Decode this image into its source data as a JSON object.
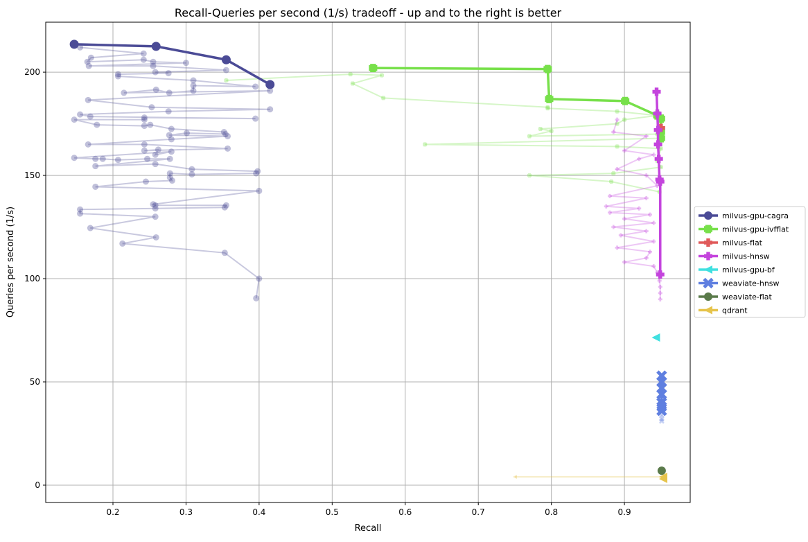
{
  "chart_data": {
    "type": "line",
    "title": "Recall-Queries per second (1/s) tradeoff - up and to the right is better",
    "xlabel": "Recall",
    "ylabel": "Queries per second (1/s)",
    "xlim": [
      0.108,
      0.99
    ],
    "ylim": [
      -8.4,
      224.2
    ],
    "xticks": [
      0.2,
      0.3,
      0.4,
      0.5,
      0.6,
      0.7,
      0.8,
      0.9
    ],
    "xtick_labels": [
      "0.2",
      "0.3",
      "0.4",
      "0.5",
      "0.6",
      "0.7",
      "0.8",
      "0.9"
    ],
    "yticks": [
      0,
      50,
      100,
      150,
      200
    ],
    "ytick_labels": [
      "0",
      "50",
      "100",
      "150",
      "200"
    ],
    "grid": true,
    "legend_position": "outside-right",
    "series": [
      {
        "name": "milvus-gpu-cagra",
        "color": "#4b4b96",
        "marker": "circle",
        "frontier": [
          [
            0.147,
            213.5
          ],
          [
            0.259,
            212.5
          ],
          [
            0.355,
            206
          ],
          [
            0.415,
            194
          ]
        ],
        "all": [
          [
            0.155,
            212
          ],
          [
            0.242,
            209
          ],
          [
            0.17,
            207
          ],
          [
            0.165,
            205
          ],
          [
            0.242,
            206
          ],
          [
            0.255,
            205
          ],
          [
            0.3,
            204.5
          ],
          [
            0.167,
            203
          ],
          [
            0.255,
            203
          ],
          [
            0.355,
            201
          ],
          [
            0.258,
            200
          ],
          [
            0.276,
            199.5
          ],
          [
            0.207,
            199
          ],
          [
            0.207,
            198
          ],
          [
            0.31,
            196
          ],
          [
            0.395,
            193
          ],
          [
            0.31,
            193.5
          ],
          [
            0.31,
            191
          ],
          [
            0.277,
            190
          ],
          [
            0.259,
            191.5
          ],
          [
            0.215,
            190
          ],
          [
            0.415,
            191
          ],
          [
            0.166,
            186.5
          ],
          [
            0.253,
            183
          ],
          [
            0.415,
            182
          ],
          [
            0.276,
            181
          ],
          [
            0.155,
            179.5
          ],
          [
            0.169,
            178.5
          ],
          [
            0.395,
            177.5
          ],
          [
            0.243,
            178
          ],
          [
            0.243,
            177
          ],
          [
            0.147,
            177
          ],
          [
            0.178,
            174.5
          ],
          [
            0.243,
            174
          ],
          [
            0.251,
            174.5
          ],
          [
            0.28,
            172.5
          ],
          [
            0.352,
            171
          ],
          [
            0.354,
            170
          ],
          [
            0.301,
            170.5
          ],
          [
            0.277,
            169.5
          ],
          [
            0.357,
            169
          ],
          [
            0.28,
            167.5
          ],
          [
            0.166,
            165
          ],
          [
            0.243,
            165
          ],
          [
            0.357,
            163
          ],
          [
            0.243,
            162
          ],
          [
            0.262,
            162.5
          ],
          [
            0.258,
            160
          ],
          [
            0.28,
            161.5
          ],
          [
            0.147,
            158.5
          ],
          [
            0.176,
            158
          ],
          [
            0.186,
            158
          ],
          [
            0.207,
            157.5
          ],
          [
            0.247,
            158
          ],
          [
            0.278,
            158
          ],
          [
            0.176,
            154.5
          ],
          [
            0.258,
            155.5
          ],
          [
            0.308,
            153
          ],
          [
            0.398,
            152
          ],
          [
            0.396,
            151
          ],
          [
            0.308,
            150.5
          ],
          [
            0.278,
            151
          ],
          [
            0.278,
            149
          ],
          [
            0.281,
            147.5
          ],
          [
            0.245,
            147
          ],
          [
            0.176,
            144.5
          ],
          [
            0.4,
            142.5
          ],
          [
            0.255,
            136
          ],
          [
            0.258,
            135.5
          ],
          [
            0.355,
            135.5
          ],
          [
            0.353,
            134.5
          ],
          [
            0.258,
            134
          ],
          [
            0.155,
            133.5
          ],
          [
            0.155,
            131.5
          ],
          [
            0.258,
            130
          ],
          [
            0.169,
            124.5
          ],
          [
            0.259,
            120
          ],
          [
            0.213,
            117
          ],
          [
            0.353,
            112.5
          ],
          [
            0.4,
            100
          ],
          [
            0.396,
            90.5
          ]
        ]
      },
      {
        "name": "milvus-gpu-ivfflat",
        "color": "#77e04a",
        "marker": "plusfilled",
        "frontier": [
          [
            0.556,
            202
          ],
          [
            0.795,
            201.5
          ],
          [
            0.797,
            187
          ],
          [
            0.901,
            186
          ],
          [
            0.945,
            179
          ],
          [
            0.95,
            177.5
          ],
          [
            0.95,
            171
          ],
          [
            0.95,
            168
          ]
        ],
        "all": [
          [
            0.355,
            196
          ],
          [
            0.525,
            199
          ],
          [
            0.568,
            198.5
          ],
          [
            0.528,
            194.5
          ],
          [
            0.57,
            187.5
          ],
          [
            0.795,
            183
          ],
          [
            0.795,
            182.5
          ],
          [
            0.89,
            181
          ],
          [
            0.945,
            179
          ],
          [
            0.9,
            177
          ],
          [
            0.89,
            175
          ],
          [
            0.785,
            172.5
          ],
          [
            0.8,
            171.5
          ],
          [
            0.77,
            169
          ],
          [
            0.945,
            170
          ],
          [
            0.95,
            168
          ],
          [
            0.627,
            165
          ],
          [
            0.89,
            164
          ],
          [
            0.95,
            163
          ],
          [
            0.945,
            157
          ],
          [
            0.95,
            154
          ],
          [
            0.885,
            151
          ],
          [
            0.77,
            150
          ],
          [
            0.882,
            147
          ],
          [
            0.948,
            142
          ]
        ]
      },
      {
        "name": "milvus-flat",
        "color": "#e05a5a",
        "marker": "plus",
        "frontier": [
          [
            0.95,
            173
          ]
        ],
        "all": []
      },
      {
        "name": "milvus-hnsw",
        "color": "#c444dd",
        "marker": "plus",
        "frontier": [
          [
            0.944,
            190.5
          ],
          [
            0.945,
            180
          ],
          [
            0.946,
            172
          ],
          [
            0.946,
            165
          ],
          [
            0.947,
            158
          ],
          [
            0.948,
            148
          ],
          [
            0.949,
            147
          ],
          [
            0.949,
            102
          ]
        ],
        "all": [
          [
            0.89,
            177
          ],
          [
            0.885,
            171
          ],
          [
            0.93,
            169
          ],
          [
            0.9,
            162
          ],
          [
            0.94,
            160
          ],
          [
            0.92,
            158
          ],
          [
            0.89,
            153
          ],
          [
            0.93,
            150
          ],
          [
            0.945,
            145
          ],
          [
            0.88,
            140
          ],
          [
            0.93,
            139
          ],
          [
            0.875,
            135
          ],
          [
            0.92,
            134
          ],
          [
            0.88,
            132
          ],
          [
            0.935,
            131
          ],
          [
            0.9,
            129
          ],
          [
            0.94,
            127
          ],
          [
            0.885,
            125
          ],
          [
            0.93,
            123
          ],
          [
            0.895,
            121
          ],
          [
            0.94,
            118
          ],
          [
            0.89,
            115
          ],
          [
            0.935,
            113
          ],
          [
            0.93,
            110
          ],
          [
            0.9,
            108
          ],
          [
            0.94,
            106
          ],
          [
            0.945,
            103
          ],
          [
            0.948,
            99
          ],
          [
            0.949,
            96
          ],
          [
            0.949,
            93
          ],
          [
            0.949,
            90
          ]
        ]
      },
      {
        "name": "milvus-gpu-bf",
        "color": "#40e0e0",
        "marker": "triangleleft",
        "frontier": [
          [
            0.943,
            71.5
          ]
        ],
        "all": []
      },
      {
        "name": "weaviate-hnsw",
        "color": "#5f7fe0",
        "marker": "x",
        "frontier": [
          [
            0.951,
            53
          ],
          [
            0.951,
            50
          ],
          [
            0.951,
            47
          ],
          [
            0.951,
            44
          ],
          [
            0.951,
            40
          ],
          [
            0.951,
            38
          ],
          [
            0.951,
            36
          ]
        ],
        "all": [
          [
            0.951,
            34
          ],
          [
            0.951,
            32
          ],
          [
            0.951,
            31
          ]
        ]
      },
      {
        "name": "weaviate-flat",
        "color": "#5a7a4a",
        "marker": "octagon",
        "frontier": [
          [
            0.951,
            7
          ]
        ],
        "all": []
      },
      {
        "name": "qdrant",
        "color": "#e6c44c",
        "marker": "triangleleft",
        "frontier": [
          [
            0.953,
            4
          ],
          [
            0.953,
            3
          ]
        ],
        "all": [
          [
            0.75,
            4
          ],
          [
            0.953,
            4
          ]
        ]
      }
    ]
  }
}
